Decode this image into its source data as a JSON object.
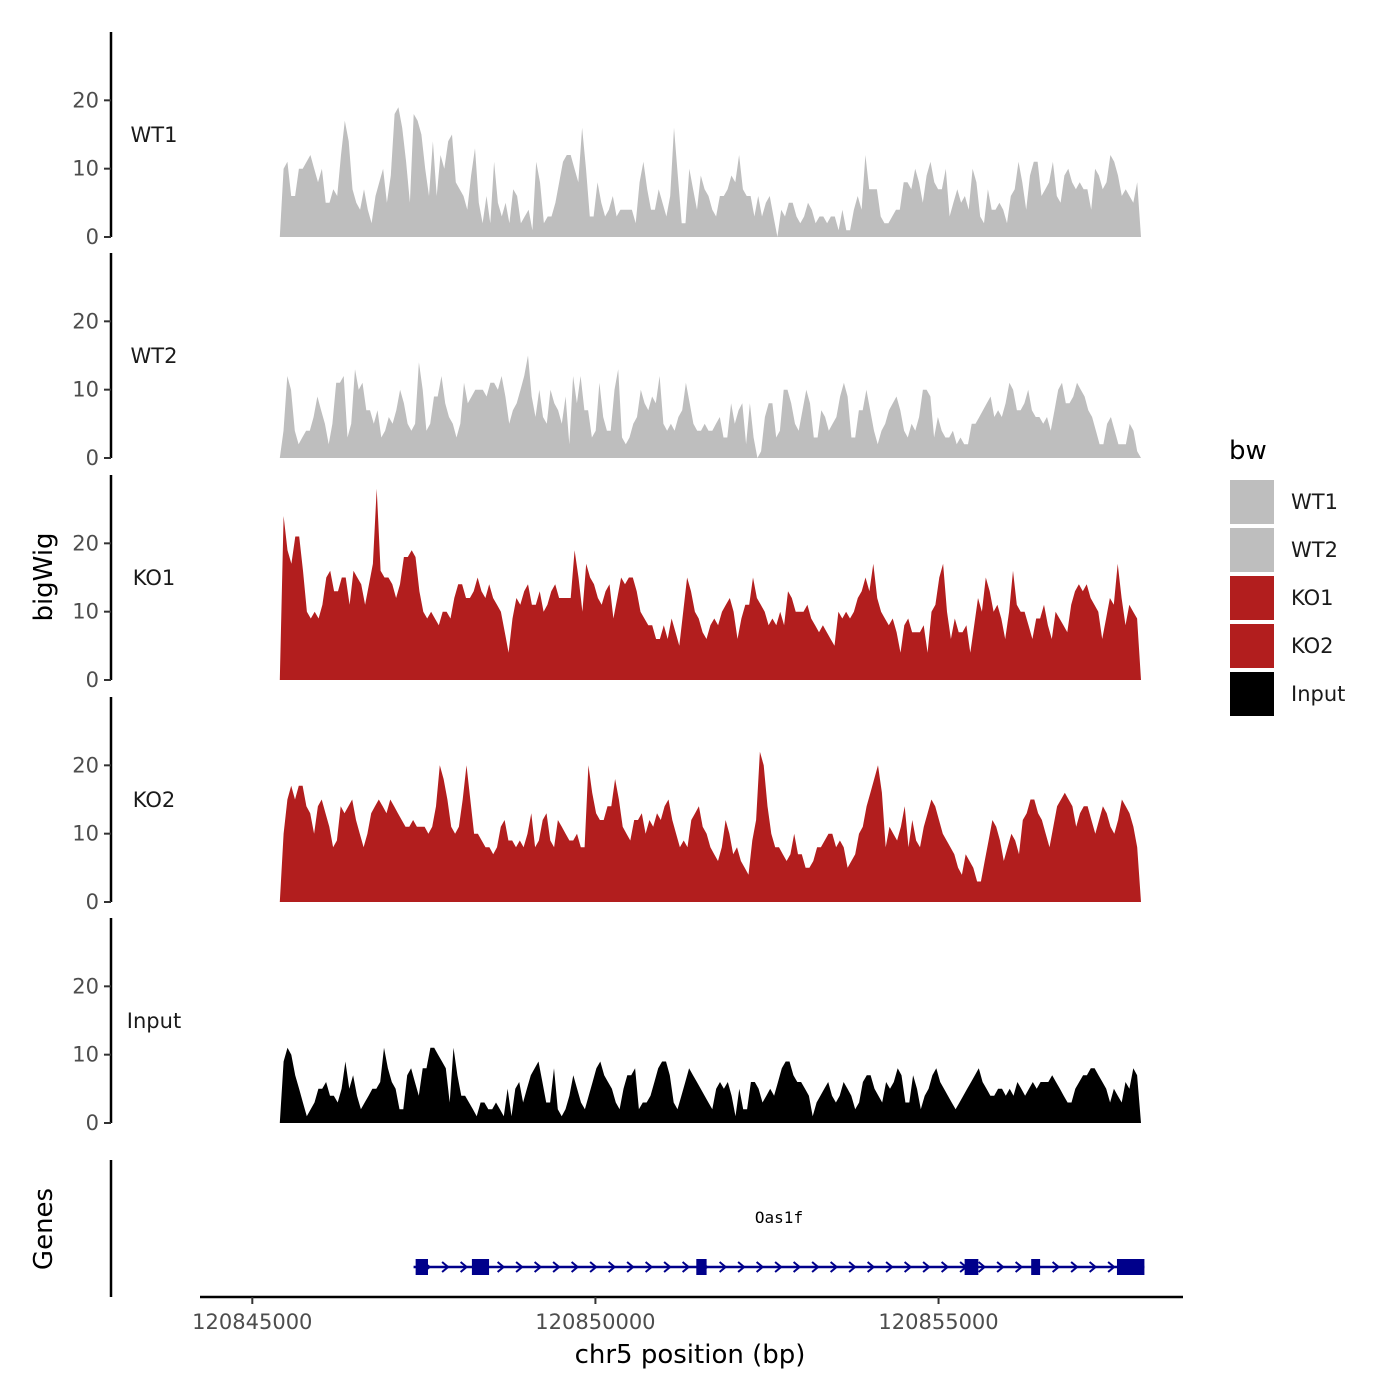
{
  "chart_data": {
    "type": "area",
    "ylabel": "bigWig",
    "xlabel": "chr5 position (bp)",
    "xlim": [
      120844500,
      120858300
    ],
    "ylim": [
      0,
      30
    ],
    "yticks": [
      0,
      10,
      20
    ],
    "xticks": [
      {
        "value": 120845000,
        "label": "120845000"
      },
      {
        "value": 120850000,
        "label": "120850000"
      },
      {
        "value": 120855000,
        "label": "120855000"
      }
    ],
    "range": [
      120845400,
      120857950
    ],
    "legend": {
      "title": "bw",
      "placement": "right",
      "entries": [
        {
          "label": "WT1",
          "color": "#bebebe"
        },
        {
          "label": "WT2",
          "color": "#bebebe"
        },
        {
          "label": "KO1",
          "color": "#b21e1e"
        },
        {
          "label": "KO2",
          "color": "#b21e1e"
        },
        {
          "label": "Input",
          "color": "#000000"
        }
      ]
    },
    "series": [
      {
        "name": "WT1",
        "color": "#bebebe",
        "values": [
          0,
          10,
          11,
          6,
          6,
          10,
          10,
          11,
          12,
          10,
          8,
          10,
          5,
          5,
          7,
          6,
          12,
          17,
          14,
          7,
          5,
          4,
          7,
          4,
          2,
          6,
          8,
          10,
          5,
          9,
          18,
          19,
          16,
          11,
          5,
          18,
          17,
          15,
          10,
          6,
          14,
          6,
          12,
          10,
          14,
          15,
          8,
          7,
          6,
          4,
          9,
          13,
          5,
          2,
          6,
          2,
          11,
          5,
          3,
          5,
          2,
          7,
          6,
          2,
          3,
          4,
          1,
          11,
          8,
          2,
          3,
          3,
          5,
          8,
          11,
          12,
          12,
          10,
          8,
          16,
          10,
          3,
          3,
          8,
          5,
          3,
          4,
          6,
          3,
          4,
          4,
          4,
          4,
          2,
          8,
          11,
          7,
          4,
          4,
          7,
          5,
          3,
          6,
          16,
          9,
          2,
          2,
          10,
          7,
          4,
          9,
          7,
          6,
          4,
          3,
          6,
          6,
          7,
          9,
          8,
          12,
          7,
          6,
          6,
          3,
          6,
          3,
          5,
          6,
          3,
          0,
          4,
          3,
          5,
          5,
          3,
          2,
          3,
          5,
          4,
          2,
          3,
          3,
          2,
          3,
          3,
          1,
          4,
          1,
          1,
          4,
          6,
          4,
          12,
          7,
          7,
          7,
          3,
          2,
          2,
          3,
          4,
          4,
          8,
          8,
          7,
          10,
          8,
          5,
          9,
          11,
          8,
          7,
          7,
          10,
          3,
          5,
          7,
          5,
          6,
          4,
          10,
          8,
          3,
          2,
          7,
          4,
          4,
          5,
          4,
          2,
          6,
          7,
          11,
          8,
          4,
          9,
          11,
          11,
          6,
          7,
          8,
          11,
          6,
          5,
          9,
          10,
          8,
          7,
          8,
          7,
          7,
          4,
          10,
          9,
          7,
          8,
          12,
          11,
          9,
          6,
          7,
          6,
          5,
          8,
          0
        ]
      },
      {
        "name": "WT2",
        "color": "#bebebe",
        "values": [
          0,
          4,
          12,
          10,
          4,
          2,
          3,
          4,
          4,
          6,
          9,
          7,
          5,
          2,
          5,
          11,
          11,
          12,
          3,
          5,
          13,
          10,
          11,
          7,
          7,
          5,
          7,
          3,
          4,
          6,
          5,
          7,
          10,
          8,
          5,
          4,
          5,
          14,
          10,
          4,
          5,
          9,
          9,
          12,
          8,
          6,
          5,
          3,
          5,
          11,
          8,
          9,
          10,
          10,
          10,
          9,
          11,
          11,
          10,
          12,
          9,
          5,
          7,
          8,
          10,
          12,
          15,
          9,
          6,
          10,
          6,
          5,
          10,
          8,
          7,
          5,
          9,
          2,
          12,
          8,
          12,
          7,
          7,
          3,
          4,
          11,
          6,
          4,
          4,
          10,
          13,
          3,
          2,
          3,
          5,
          6,
          10,
          8,
          7,
          9,
          8,
          12,
          5,
          4,
          5,
          4,
          6,
          7,
          11,
          8,
          5,
          4,
          4,
          5,
          4,
          4,
          5,
          6,
          3,
          3,
          8,
          5,
          7,
          8,
          2,
          8,
          3,
          0,
          1,
          6,
          8,
          8,
          3,
          4,
          10,
          10,
          8,
          5,
          4,
          7,
          10,
          8,
          3,
          3,
          7,
          6,
          4,
          5,
          6,
          9,
          11,
          9,
          3,
          3,
          7,
          7,
          10,
          7,
          4,
          2,
          4,
          5,
          7,
          8,
          9,
          7,
          4,
          3,
          5,
          4,
          6,
          10,
          10,
          9,
          3,
          6,
          4,
          3,
          3,
          4,
          2,
          3,
          2,
          2,
          5,
          5,
          6,
          7,
          8,
          9,
          6,
          7,
          6,
          8,
          11,
          10,
          7,
          7,
          8,
          10,
          7,
          6,
          6,
          5,
          6,
          4,
          7,
          10,
          11,
          8,
          8,
          9,
          11,
          10,
          9,
          7,
          6,
          4,
          2,
          2,
          5,
          6,
          4,
          2,
          2,
          2,
          5,
          4,
          1,
          0
        ]
      },
      {
        "name": "KO1",
        "color": "#b21e1e",
        "values": [
          0,
          24,
          19,
          17,
          21,
          21,
          16,
          10,
          9,
          10,
          9,
          11,
          15,
          16,
          13,
          13,
          15,
          15,
          11,
          16,
          15,
          14,
          11,
          14,
          17,
          28,
          16,
          15,
          15,
          14,
          12,
          14,
          18,
          18,
          19,
          18,
          13,
          10,
          9,
          10,
          9,
          8,
          10,
          10,
          9,
          12,
          14,
          14,
          12,
          12,
          13,
          15,
          13,
          12,
          14,
          12,
          11,
          10,
          7,
          4,
          9,
          12,
          11,
          13,
          14,
          11,
          11,
          13,
          10,
          11,
          13,
          14,
          12,
          12,
          12,
          12,
          19,
          15,
          10,
          17,
          15,
          14,
          12,
          11,
          13,
          14,
          9,
          12,
          15,
          14,
          15,
          15,
          13,
          10,
          9,
          8,
          8,
          6,
          6,
          8,
          6,
          9,
          7,
          5,
          10,
          15,
          13,
          10,
          9,
          7,
          6,
          8,
          9,
          8,
          10,
          11,
          12,
          10,
          6,
          9,
          11,
          11,
          15,
          12,
          11,
          10,
          8,
          9,
          8,
          10,
          8,
          13,
          12,
          10,
          10,
          10,
          11,
          9,
          8,
          7,
          8,
          7,
          6,
          5,
          10,
          9,
          10,
          9,
          10,
          12,
          13,
          15,
          13,
          17,
          12,
          10,
          9,
          8,
          9,
          7,
          4,
          8,
          9,
          7,
          7,
          7,
          8,
          4,
          10,
          11,
          15,
          17,
          10,
          6,
          9,
          7,
          7,
          8,
          4,
          8,
          12,
          10,
          15,
          13,
          10,
          11,
          9,
          6,
          10,
          16,
          11,
          10,
          10,
          8,
          6,
          9,
          9,
          11,
          8,
          6,
          10,
          9,
          8,
          7,
          11,
          13,
          14,
          13,
          14,
          12,
          11,
          10,
          6,
          9,
          12,
          11,
          17,
          12,
          8,
          11,
          10,
          9,
          0
        ]
      },
      {
        "name": "KO2",
        "color": "#b21e1e",
        "values": [
          0,
          10,
          15,
          17,
          15,
          17,
          17,
          14,
          13,
          10,
          14,
          15,
          13,
          11,
          8,
          9,
          14,
          13,
          14,
          15,
          12,
          10,
          8,
          10,
          13,
          14,
          15,
          14,
          13,
          15,
          14,
          13,
          12,
          11,
          11,
          12,
          11,
          11,
          11,
          10,
          11,
          14,
          20,
          18,
          15,
          11,
          10,
          11,
          15,
          20,
          15,
          10,
          10,
          9,
          8,
          8,
          7,
          8,
          11,
          12,
          9,
          9,
          8,
          9,
          8,
          10,
          13,
          8,
          9,
          12,
          13,
          9,
          8,
          12,
          11,
          10,
          9,
          9,
          10,
          8,
          8,
          20,
          16,
          13,
          12,
          12,
          14,
          14,
          18,
          15,
          11,
          10,
          9,
          12,
          12,
          13,
          10,
          12,
          11,
          13,
          12,
          14,
          15,
          12,
          10,
          8,
          9,
          8,
          12,
          13,
          14,
          11,
          10,
          8,
          7,
          6,
          8,
          12,
          10,
          7,
          8,
          6,
          5,
          4,
          9,
          12,
          22,
          20,
          14,
          10,
          8,
          8,
          7,
          6,
          7,
          10,
          7,
          7,
          5,
          5,
          6,
          8,
          8,
          9,
          10,
          10,
          8,
          9,
          8,
          5,
          6,
          7,
          10,
          11,
          14,
          16,
          18,
          20,
          16,
          8,
          11,
          10,
          9,
          11,
          14,
          8,
          12,
          9,
          8,
          11,
          13,
          15,
          14,
          12,
          10,
          9,
          8,
          7,
          5,
          4,
          7,
          6,
          5,
          3,
          3,
          6,
          9,
          12,
          11,
          9,
          6,
          8,
          10,
          9,
          7,
          12,
          13,
          15,
          15,
          13,
          12,
          10,
          8,
          11,
          14,
          15,
          16,
          15,
          14,
          11,
          13,
          14,
          14,
          12,
          10,
          12,
          14,
          13,
          11,
          10,
          12,
          15,
          14,
          13,
          11,
          8,
          0
        ]
      },
      {
        "name": "Input",
        "color": "#000000",
        "values": [
          0,
          9,
          11,
          10,
          7,
          5,
          3,
          1,
          2,
          3,
          5,
          5,
          6,
          4,
          4,
          3,
          5,
          9,
          5,
          7,
          4,
          2,
          3,
          4,
          5,
          5,
          6,
          11,
          8,
          6,
          5,
          2,
          2,
          7,
          8,
          6,
          4,
          8,
          8,
          11,
          11,
          10,
          9,
          8,
          3,
          11,
          7,
          4,
          4,
          3,
          2,
          1,
          3,
          3,
          2,
          2,
          3,
          2,
          1,
          5,
          1,
          5,
          6,
          3,
          5,
          7,
          8,
          9,
          6,
          3,
          3,
          8,
          2,
          1,
          2,
          4,
          7,
          5,
          3,
          2,
          4,
          6,
          8,
          9,
          7,
          6,
          5,
          3,
          2,
          5,
          7,
          7,
          8,
          2,
          3,
          3,
          4,
          6,
          8,
          9,
          9,
          7,
          3,
          2,
          4,
          6,
          8,
          7,
          6,
          5,
          4,
          3,
          2,
          5,
          6,
          5,
          6,
          4,
          1,
          5,
          2,
          2,
          6,
          6,
          5,
          3,
          4,
          5,
          4,
          6,
          8,
          9,
          9,
          7,
          6,
          6,
          5,
          4,
          1,
          3,
          4,
          5,
          6,
          4,
          3,
          4,
          6,
          5,
          4,
          2,
          3,
          6,
          7,
          7,
          5,
          4,
          3,
          6,
          5,
          6,
          8,
          7,
          3,
          3,
          7,
          5,
          2,
          4,
          5,
          7,
          8,
          6,
          5,
          4,
          3,
          2,
          3,
          4,
          5,
          6,
          7,
          8,
          6,
          5,
          4,
          4,
          5,
          5,
          4,
          5,
          4,
          6,
          5,
          4,
          5,
          6,
          5,
          6,
          6,
          6,
          7,
          6,
          5,
          4,
          3,
          3,
          5,
          6,
          7,
          7,
          8,
          8,
          7,
          6,
          5,
          3,
          5,
          4,
          3,
          6,
          5,
          8,
          7,
          0
        ]
      }
    ],
    "gene_track": {
      "title": "Genes",
      "gene": {
        "name": "Oas1f",
        "strand": "+",
        "start": 120847350,
        "end": 120858000,
        "exons": [
          [
            120847380,
            120847560
          ],
          [
            120848200,
            120848450
          ],
          [
            120851470,
            120851620
          ],
          [
            120855380,
            120855580
          ],
          [
            120856350,
            120856480
          ],
          [
            120857600,
            120858000
          ]
        ]
      }
    }
  }
}
